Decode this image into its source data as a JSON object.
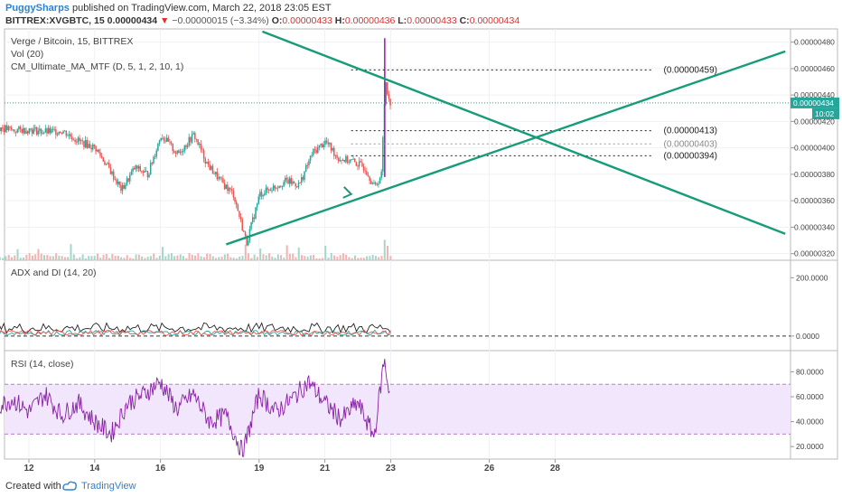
{
  "header": {
    "author": "PuggySharps",
    "published": "published on TradingView.com, March 22, 2018 23:05 EST",
    "symbol": "BITTREX:XVGBTC, 15",
    "last": "0.00000434",
    "change": "−0.00000015 (−3.34%)",
    "o_label": "O:",
    "o": "0.00000433",
    "h_label": "H:",
    "h": "0.00000436",
    "l_label": "L:",
    "l": "0.00000433",
    "c_label": "C:",
    "c": "0.00000434"
  },
  "main_pane": {
    "title": "Verge / Bitcoin, 15, BITTREX",
    "vol": "Vol (20)",
    "ma": "CM_Ultimate_MA_MTF (D, 5, 1, 2, 10, 1)"
  },
  "adx_pane": {
    "title": "ADX and DI (14, 20)"
  },
  "rsi_pane": {
    "title": "RSI (14, close)"
  },
  "footer": {
    "created": "Created with",
    "brand": "TradingView"
  },
  "colors": {
    "up": "#26a69a",
    "down": "#ef5350",
    "trend": "#179b78",
    "rsi": "#8b1fa8",
    "rsi_band": "#f1e6fb",
    "accent": "#2a83d6"
  },
  "chart_data": [
    {
      "type": "candlestick",
      "name": "Verge / Bitcoin",
      "x_ticks": [
        "12",
        "14",
        "16",
        "19",
        "21",
        "23",
        "26",
        "28"
      ],
      "y_ticks": [
        "0.00000480",
        "0.00000460",
        "0.00000440",
        "0.00000420",
        "0.00000400",
        "0.00000380",
        "0.00000360",
        "0.00000340",
        "0.00000320"
      ],
      "ylim": [
        3.15e-06,
        4.9e-06
      ],
      "current_price_label": "0.00000434",
      "timer_label": "10:02",
      "fib_levels": [
        {
          "label": "(0.00000459)",
          "value": 4.59e-06
        },
        {
          "label": "(0.00000413)",
          "value": 4.13e-06
        },
        {
          "label": "(0.00000403)",
          "value": 4.03e-06
        },
        {
          "label": "(0.00000394)",
          "value": 3.94e-06
        }
      ],
      "price_path": [
        {
          "d": 11.0,
          "p": 4.16e-06
        },
        {
          "d": 11.5,
          "p": 4.13e-06
        },
        {
          "d": 12.0,
          "p": 4.14e-06
        },
        {
          "d": 12.5,
          "p": 4.12e-06
        },
        {
          "d": 13.0,
          "p": 4.13e-06
        },
        {
          "d": 13.5,
          "p": 4.05e-06
        },
        {
          "d": 14.0,
          "p": 4e-06
        },
        {
          "d": 14.4,
          "p": 3.85e-06
        },
        {
          "d": 14.8,
          "p": 3.68e-06
        },
        {
          "d": 15.2,
          "p": 3.85e-06
        },
        {
          "d": 15.6,
          "p": 3.8e-06
        },
        {
          "d": 16.0,
          "p": 4.1e-06
        },
        {
          "d": 16.5,
          "p": 3.95e-06
        },
        {
          "d": 17.0,
          "p": 4.1e-06
        },
        {
          "d": 17.4,
          "p": 3.88e-06
        },
        {
          "d": 17.8,
          "p": 3.75e-06
        },
        {
          "d": 18.2,
          "p": 3.65e-06
        },
        {
          "d": 18.6,
          "p": 3.28e-06
        },
        {
          "d": 19.0,
          "p": 3.65e-06
        },
        {
          "d": 19.4,
          "p": 3.7e-06
        },
        {
          "d": 19.8,
          "p": 3.75e-06
        },
        {
          "d": 20.2,
          "p": 3.72e-06
        },
        {
          "d": 20.6,
          "p": 3.96e-06
        },
        {
          "d": 21.0,
          "p": 4.05e-06
        },
        {
          "d": 21.4,
          "p": 3.92e-06
        },
        {
          "d": 21.8,
          "p": 3.9e-06
        },
        {
          "d": 22.2,
          "p": 3.85e-06
        },
        {
          "d": 22.5,
          "p": 3.7e-06
        },
        {
          "d": 22.7,
          "p": 3.8e-06
        },
        {
          "d": 22.8,
          "p": 4.4e-06
        },
        {
          "d": 22.85,
          "p": 4.55e-06
        },
        {
          "d": 22.9,
          "p": 4.36e-06
        },
        {
          "d": 23.0,
          "p": 4.34e-06
        }
      ],
      "trend_lines": [
        {
          "from": {
            "d": 19.1,
            "p": 4.88e-06
          },
          "to": {
            "d": 35.0,
            "p": 3.35e-06
          }
        },
        {
          "from": {
            "d": 18.0,
            "p": 3.27e-06
          },
          "to": {
            "d": 35.0,
            "p": 4.73e-06
          }
        }
      ],
      "arrow_at": {
        "d": 21.8,
        "p": 3.65e-06
      }
    },
    {
      "type": "line",
      "name": "ADX and DI",
      "y_ticks": [
        "200.0000",
        "0.0000"
      ],
      "ylim": [
        -50,
        260
      ],
      "reference_line": 0
    },
    {
      "type": "line",
      "name": "RSI",
      "y_ticks": [
        "80.0000",
        "60.0000",
        "40.0000",
        "20.0000"
      ],
      "ylim": [
        10,
        97
      ],
      "band": [
        30,
        70
      ],
      "path": [
        {
          "d": 11.0,
          "v": 52
        },
        {
          "d": 11.5,
          "v": 58
        },
        {
          "d": 12.0,
          "v": 48
        },
        {
          "d": 12.5,
          "v": 62
        },
        {
          "d": 13.0,
          "v": 45
        },
        {
          "d": 13.5,
          "v": 55
        },
        {
          "d": 14.0,
          "v": 40
        },
        {
          "d": 14.5,
          "v": 30
        },
        {
          "d": 15.0,
          "v": 55
        },
        {
          "d": 15.5,
          "v": 62
        },
        {
          "d": 16.0,
          "v": 72
        },
        {
          "d": 16.5,
          "v": 50
        },
        {
          "d": 17.0,
          "v": 62
        },
        {
          "d": 17.5,
          "v": 40
        },
        {
          "d": 18.0,
          "v": 45
        },
        {
          "d": 18.5,
          "v": 15
        },
        {
          "d": 19.0,
          "v": 62
        },
        {
          "d": 19.5,
          "v": 48
        },
        {
          "d": 20.0,
          "v": 58
        },
        {
          "d": 20.5,
          "v": 72
        },
        {
          "d": 21.0,
          "v": 55
        },
        {
          "d": 21.5,
          "v": 42
        },
        {
          "d": 22.0,
          "v": 55
        },
        {
          "d": 22.5,
          "v": 28
        },
        {
          "d": 22.8,
          "v": 90
        },
        {
          "d": 23.0,
          "v": 58
        }
      ]
    }
  ]
}
